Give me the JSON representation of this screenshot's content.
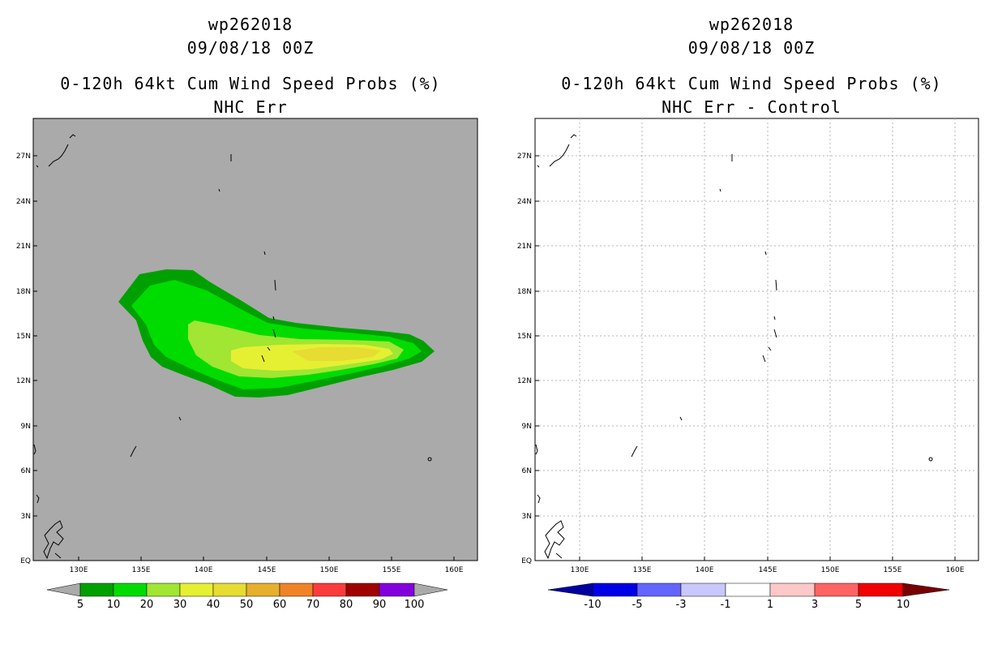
{
  "left_panel": {
    "title_line1": "wp262018",
    "title_line2": "09/08/18 00Z",
    "title_line3": "0-120h 64kt Cum Wind Speed Probs (%)",
    "title_line4": "NHC Err",
    "lat_labels": [
      "27N",
      "24N",
      "21N",
      "18N",
      "15N",
      "12N",
      "9N",
      "6N",
      "3N",
      "EQ"
    ],
    "lon_labels": [
      "130E",
      "135E",
      "140E",
      "145E",
      "150E",
      "155E",
      "160E"
    ],
    "map_background": "#aaaaaa",
    "colorbar": {
      "labels": [
        "5",
        "10",
        "20",
        "30",
        "40",
        "50",
        "60",
        "70",
        "80",
        "90",
        "100"
      ],
      "colors": [
        "#00a000",
        "#00dc00",
        "#a0e632",
        "#e6f032",
        "#e6dc32",
        "#e6af2d",
        "#f08228",
        "#fa3c3c",
        "#a00000",
        "#8200dc"
      ],
      "under_color": "#aaaaaa",
      "over_color": "#aaaaaa"
    }
  },
  "right_panel": {
    "title_line1": "wp262018",
    "title_line2": "09/08/18 00Z",
    "title_line3": "0-120h 64kt Cum Wind Speed Probs (%)",
    "title_line4": "NHC Err - Control",
    "lat_labels": [
      "27N",
      "24N",
      "21N",
      "18N",
      "15N",
      "12N",
      "9N",
      "6N",
      "3N",
      "EQ"
    ],
    "lon_labels": [
      "130E",
      "135E",
      "140E",
      "145E",
      "150E",
      "155E",
      "160E"
    ],
    "map_background": "#ffffff",
    "colorbar": {
      "labels": [
        "-10",
        "-5",
        "-3",
        "-1",
        "1",
        "3",
        "5",
        "10"
      ],
      "colors": [
        "#0000e6",
        "#6464ff",
        "#c8c8ff",
        "#ffffff",
        "#ffc8c8",
        "#ff6464",
        "#f00000"
      ],
      "under_color": "#0000a0",
      "over_color": "#780000"
    }
  },
  "legend_colors": {
    "prob_5_10": "#00a000",
    "prob_10_20": "#00dc00",
    "prob_20_30": "#a0e632",
    "prob_30_40": "#e6f032",
    "prob_40_50": "#e6dc32"
  }
}
